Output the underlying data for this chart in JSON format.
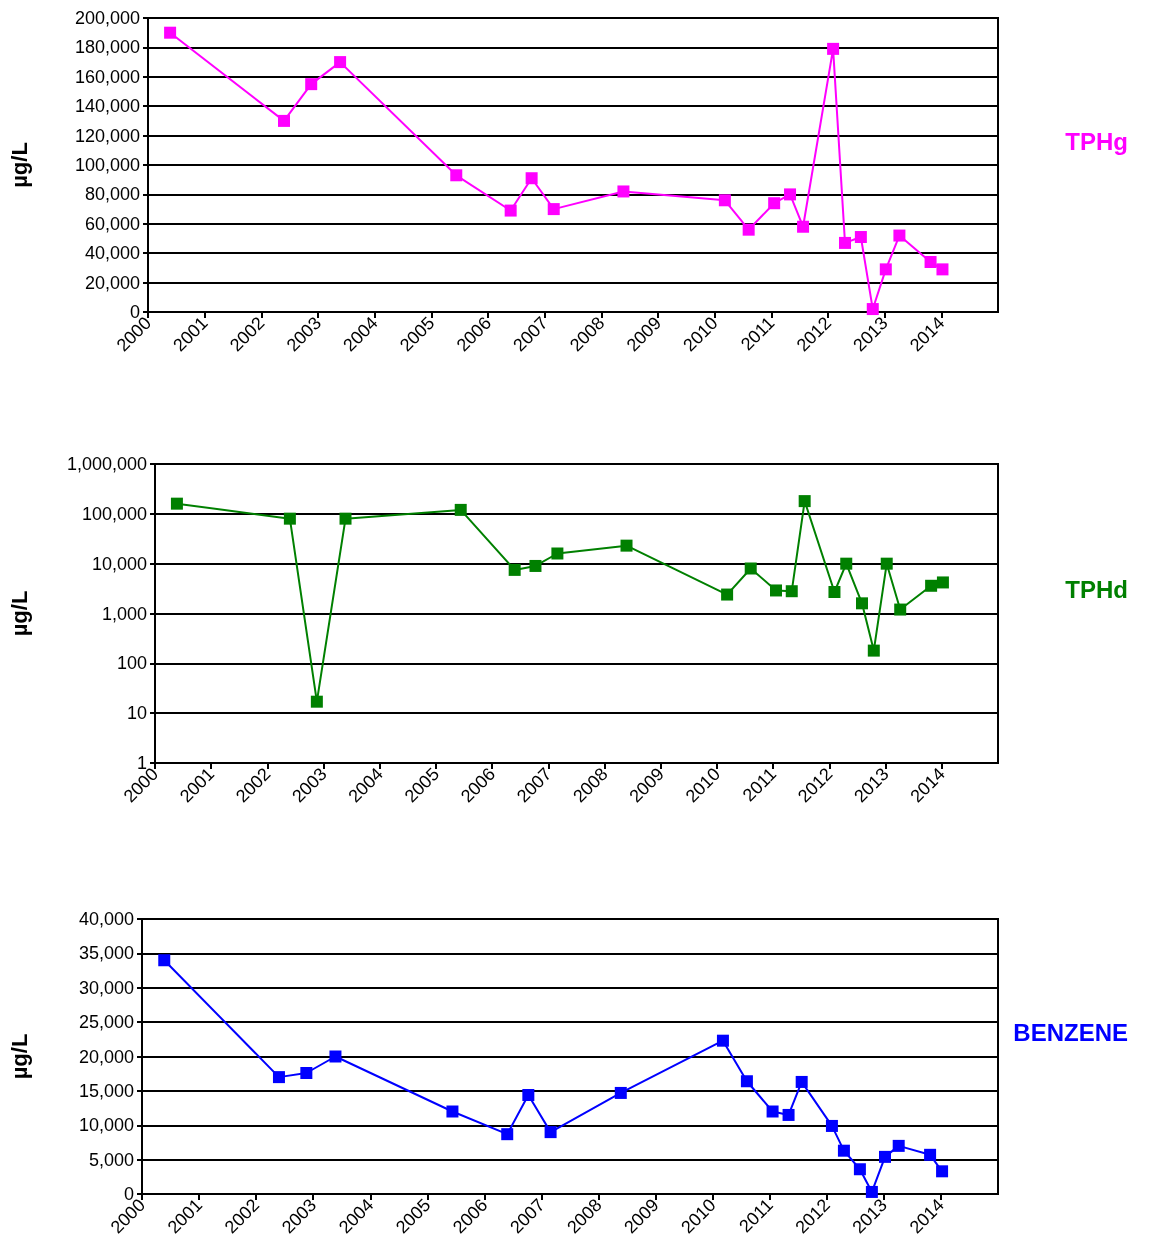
{
  "chart_data": [
    {
      "type": "line",
      "ylabel": "µg/L",
      "x": [
        2000.39,
        2002.4,
        2002.88,
        2003.39,
        2005.44,
        2006.4,
        2006.77,
        2007.16,
        2008.39,
        2010.18,
        2010.6,
        2011.05,
        2011.33,
        2011.56,
        2012.09,
        2012.3,
        2012.58,
        2012.79,
        2013.02,
        2013.26,
        2013.81,
        2014.02
      ],
      "series": [
        {
          "name": "TPHg",
          "color": "#ff00ff",
          "values": [
            190000,
            130000,
            155000,
            170000,
            93000,
            69000,
            91000,
            70000,
            82000,
            76000,
            56000,
            74000,
            80000,
            58000,
            179000,
            47000,
            51000,
            2000,
            29000,
            52000,
            34000,
            29000
          ]
        }
      ],
      "xlim": [
        2000,
        2015
      ],
      "xticks": [
        2000,
        2001,
        2002,
        2003,
        2004,
        2005,
        2006,
        2007,
        2008,
        2009,
        2010,
        2011,
        2012,
        2013,
        2014
      ],
      "ylim": [
        0,
        200000
      ],
      "yticks": [
        0,
        {
          "value": 20000,
          "label": "20,000"
        },
        {
          "value": 40000,
          "label": "40,000"
        },
        {
          "value": 60000,
          "label": "60,000"
        },
        {
          "value": 80000,
          "label": "80,000"
        },
        {
          "value": 100000,
          "label": "100,000"
        },
        {
          "value": 120000,
          "label": "120,000"
        },
        {
          "value": 140000,
          "label": "140,000"
        },
        {
          "value": 160000,
          "label": "160,000"
        },
        {
          "value": 180000,
          "label": "180,000"
        },
        {
          "value": 200000,
          "label": "200,000"
        }
      ],
      "grid": "y",
      "legend": false,
      "marker": "square",
      "line_style": "solid"
    },
    {
      "type": "line",
      "ylabel": "µg/L",
      "x": [
        2000.39,
        2002.4,
        2002.88,
        2003.39,
        2005.44,
        2006.4,
        2006.77,
        2007.16,
        2008.39,
        2010.18,
        2010.6,
        2011.05,
        2011.33,
        2011.56,
        2012.09,
        2012.3,
        2012.58,
        2012.79,
        2013.02,
        2013.26,
        2013.81,
        2014.02
      ],
      "series": [
        {
          "name": "TPHd",
          "color": "#008000",
          "values": [
            160000,
            80000,
            17,
            80000,
            120000,
            7500,
            9000,
            16000,
            23000,
            2400,
            8000,
            2900,
            2800,
            180000,
            2700,
            10000,
            1600,
            180,
            10000,
            1200,
            3600,
            4200
          ]
        }
      ],
      "xlim": [
        2000,
        2015
      ],
      "xticks": [
        2000,
        2001,
        2002,
        2003,
        2004,
        2005,
        2006,
        2007,
        2008,
        2009,
        2010,
        2011,
        2012,
        2013,
        2014
      ],
      "log": true,
      "ylim": [
        1,
        1000000
      ],
      "yticks": [
        1,
        10,
        100,
        {
          "value": 1000,
          "label": "1,000"
        },
        {
          "value": 10000,
          "label": "10,000"
        },
        {
          "value": 100000,
          "label": "100,000"
        },
        {
          "value": 1000000,
          "label": "1,000,000"
        }
      ],
      "grid": "y",
      "legend": false,
      "marker": "square",
      "line_style": "solid"
    },
    {
      "type": "line",
      "ylabel": "µg/L",
      "x": [
        2000.39,
        2002.4,
        2002.88,
        2003.39,
        2005.44,
        2006.4,
        2006.77,
        2007.16,
        2008.39,
        2010.18,
        2010.6,
        2011.05,
        2011.33,
        2011.56,
        2012.09,
        2012.3,
        2012.58,
        2012.79,
        2013.02,
        2013.26,
        2013.81,
        2014.02
      ],
      "series": [
        {
          "name": "BENZENE",
          "color": "#0000ff",
          "values": [
            34000,
            17000,
            17600,
            20000,
            12000,
            8700,
            14400,
            9000,
            14700,
            22300,
            16400,
            12000,
            11500,
            16300,
            9900,
            6300,
            3600,
            300,
            5400,
            7000,
            5700,
            3300
          ]
        }
      ],
      "xlim": [
        2000,
        2015
      ],
      "xticks": [
        2000,
        2001,
        2002,
        2003,
        2004,
        2005,
        2006,
        2007,
        2008,
        2009,
        2010,
        2011,
        2012,
        2013,
        2014
      ],
      "ylim": [
        0,
        40000
      ],
      "yticks": [
        0,
        {
          "value": 5000,
          "label": "5,000"
        },
        {
          "value": 10000,
          "label": "10,000"
        },
        {
          "value": 15000,
          "label": "15,000"
        },
        {
          "value": 20000,
          "label": "20,000"
        },
        {
          "value": 25000,
          "label": "25,000"
        },
        {
          "value": 30000,
          "label": "30,000"
        },
        {
          "value": 35000,
          "label": "35,000"
        },
        {
          "value": 40000,
          "label": "40,000"
        }
      ],
      "grid": "y",
      "legend": false,
      "marker": "square",
      "line_style": "solid"
    }
  ]
}
